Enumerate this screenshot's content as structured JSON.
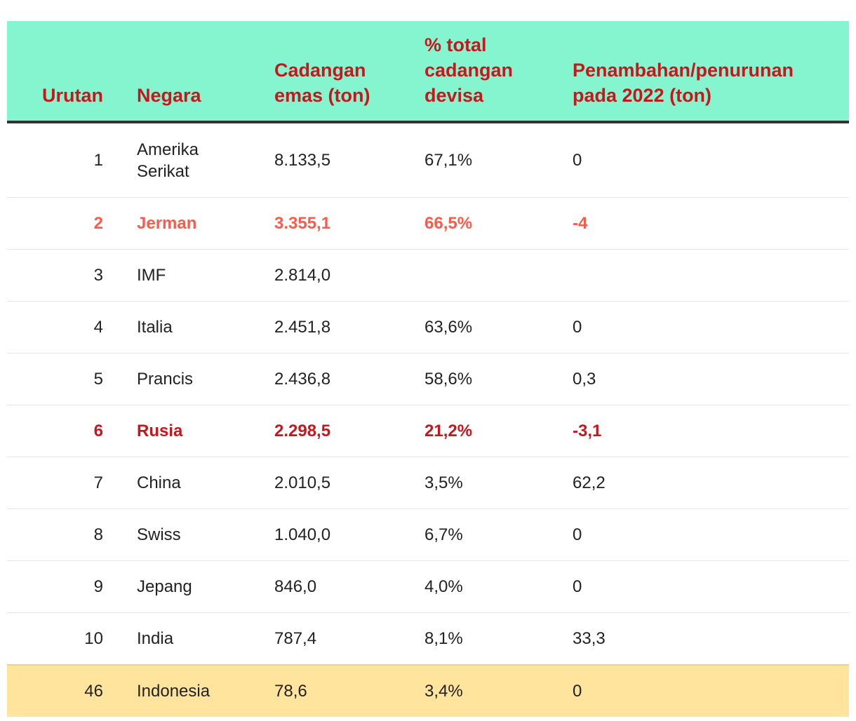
{
  "header": {
    "rank": "Urutan",
    "country": "Negara",
    "reserves": "Cadangan emas (ton)",
    "percent": "% total cadangan devisa",
    "change": "Penambahan/penurunan pada 2022 (ton)"
  },
  "colors": {
    "header_bg": "#84f5cf",
    "header_text": "#c8161d",
    "highlight_light": "#fc5b4b",
    "highlight_dark": "#c8161d",
    "indonesia_bg": "#fee49c"
  },
  "rows": [
    {
      "rank": "1",
      "country": "Amerika Serikat",
      "reserves": "8.133,5",
      "percent": "67,1%",
      "change": "0",
      "style": "first"
    },
    {
      "rank": "2",
      "country": "Jerman",
      "reserves": "3.355,1",
      "percent": "66,5%",
      "change": "-4",
      "style": "hl-light"
    },
    {
      "rank": "3",
      "country": "IMF",
      "reserves": "2.814,0",
      "percent": "",
      "change": "",
      "style": ""
    },
    {
      "rank": "4",
      "country": "Italia",
      "reserves": "2.451,8",
      "percent": "63,6%",
      "change": "0",
      "style": ""
    },
    {
      "rank": "5",
      "country": "Prancis",
      "reserves": "2.436,8",
      "percent": "58,6%",
      "change": "0,3",
      "style": ""
    },
    {
      "rank": "6",
      "country": "Rusia",
      "reserves": "2.298,5",
      "percent": "21,2%",
      "change": "-3,1",
      "style": "hl-dark"
    },
    {
      "rank": "7",
      "country": "China",
      "reserves": "2.010,5",
      "percent": "3,5%",
      "change": "62,2",
      "style": ""
    },
    {
      "rank": "8",
      "country": "Swiss",
      "reserves": "1.040,0",
      "percent": "6,7%",
      "change": "0",
      "style": ""
    },
    {
      "rank": "9",
      "country": "Jepang",
      "reserves": "846,0",
      "percent": "4,0%",
      "change": "0",
      "style": ""
    },
    {
      "rank": "10",
      "country": "India",
      "reserves": "787,4",
      "percent": "8,1%",
      "change": "33,3",
      "style": ""
    },
    {
      "rank": "46",
      "country": "Indonesia",
      "reserves": "78,6",
      "percent": "3,4%",
      "change": "0",
      "style": "hl-id"
    }
  ]
}
